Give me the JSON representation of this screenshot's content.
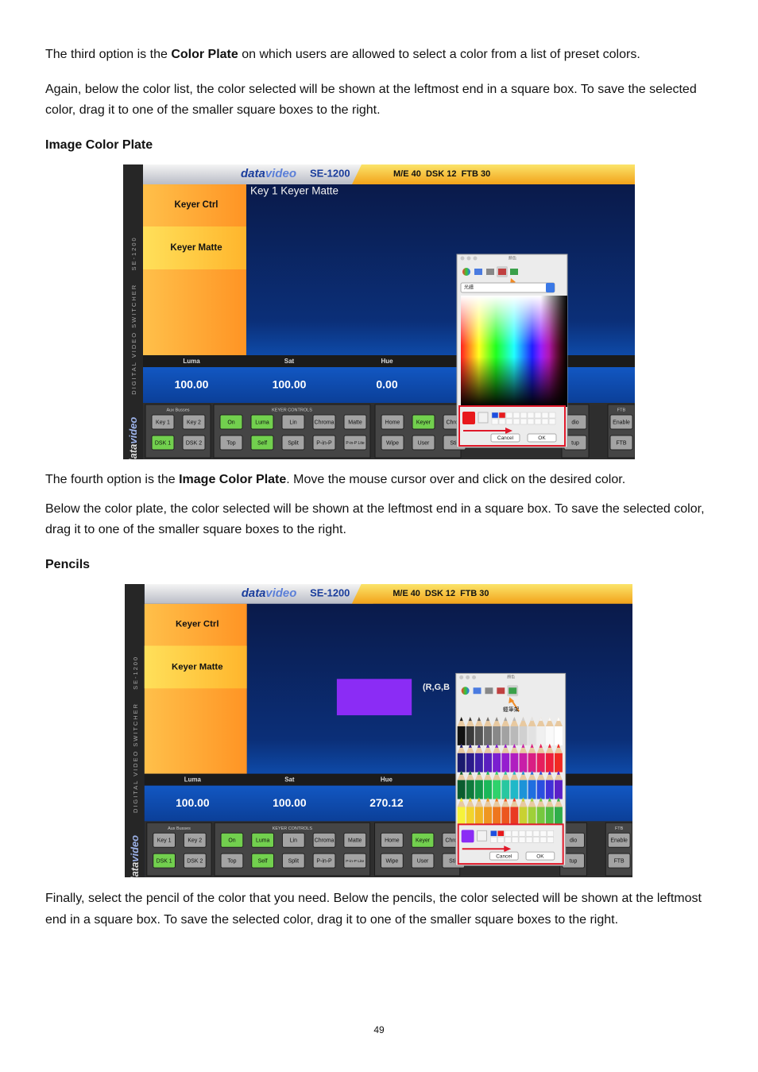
{
  "intro": {
    "p1": [
      "The third option is the ",
      "Color Plate",
      " on which users are allowed to select a color from a list of preset colors."
    ],
    "p2": "Again, below the color list, the color selected will be shown at the leftmost end in a square box. To save the selected color, drag it to one of the smaller square boxes to the right."
  },
  "section1": {
    "heading": "Image Color Plate",
    "screenshot": {
      "brand": [
        "data",
        "video"
      ],
      "model": "SE-1200",
      "status": "M/E 40  DSK 12  FTB 30",
      "side_label": "DIGITAL VIDEO SWITCHER    SE-1200",
      "menu": [
        "Keyer Ctrl",
        "Keyer Matte"
      ],
      "panel_title": "Key 1 Keyer Matte",
      "sliders": [
        {
          "label": "Luma",
          "value": "100.00"
        },
        {
          "label": "Sat",
          "value": "100.00"
        },
        {
          "label": "Hue",
          "value": "0.00"
        }
      ],
      "groups": [
        {
          "label": "Aux Busses",
          "rows": [
            [
              {
                "label": "Key 1"
              },
              {
                "label": "Key 2"
              }
            ],
            [
              {
                "label": "DSK 1",
                "on": true
              },
              {
                "label": "DSK 2"
              }
            ]
          ]
        },
        {
          "label": "KEYER CONTROLS",
          "rows": [
            [
              {
                "label": "On",
                "on": true
              },
              {
                "label": "Luma",
                "on": true
              },
              {
                "label": "Lin"
              },
              {
                "label": "Chroma"
              },
              {
                "label": "Matte"
              }
            ],
            [
              {
                "label": "Top"
              },
              {
                "label": "Self",
                "on": true
              },
              {
                "label": "Split"
              },
              {
                "label": "P-in-P"
              },
              {
                "label": "P-in-P Lite"
              }
            ]
          ]
        },
        {
          "rows": [
            [
              {
                "label": "Home"
              },
              {
                "label": "Keyer",
                "on": true
              },
              {
                "label": "Chrom"
              }
            ],
            [
              {
                "label": "Wipe"
              },
              {
                "label": "User"
              },
              {
                "label": "Still"
              }
            ]
          ]
        },
        {
          "rows": [
            [
              {
                "label": "dio"
              }
            ],
            [
              {
                "label": "tup"
              }
            ]
          ]
        },
        {
          "label": "FTB",
          "rows": [
            [
              {
                "label": "Enable"
              }
            ],
            [
              {
                "label": "FTB"
              }
            ]
          ]
        }
      ],
      "popup": {
        "title": "顏色",
        "dropdown": "光譜",
        "selected_color": "#e8191c",
        "buttons": [
          "Cancel",
          "OK"
        ]
      }
    },
    "p1": [
      "The fourth option is the ",
      "Image Color Plate",
      ". Move the mouse cursor over and click on the desired color."
    ],
    "p2": "Below the color plate, the color selected will be shown at the leftmost end in a square box. To save the selected color, drag it to one of the smaller square boxes to the right."
  },
  "section2": {
    "heading": "Pencils",
    "screenshot": {
      "brand": [
        "data",
        "video"
      ],
      "model": "SE-1200",
      "status": "M/E 40  DSK 12  FTB 30",
      "side_label": "DIGITAL VIDEO SWITCHER    SE-1200",
      "menu": [
        "Keyer Ctrl",
        "Keyer Matte"
      ],
      "sample_color": "#8b2cf5",
      "readout": "(R,G,B",
      "sliders": [
        {
          "label": "Luma",
          "value": "100.00"
        },
        {
          "label": "Sat",
          "value": "100.00"
        },
        {
          "label": "Hue",
          "value": "270.12"
        }
      ],
      "groups": [
        {
          "label": "Aux Busses",
          "rows": [
            [
              {
                "label": "Key 1"
              },
              {
                "label": "Key 2"
              }
            ],
            [
              {
                "label": "DSK 1",
                "on": true
              },
              {
                "label": "DSK 2"
              }
            ]
          ]
        },
        {
          "label": "KEYER CONTROLS",
          "rows": [
            [
              {
                "label": "On",
                "on": true
              },
              {
                "label": "Luma",
                "on": true
              },
              {
                "label": "Lin"
              },
              {
                "label": "Chroma"
              },
              {
                "label": "Matte"
              }
            ],
            [
              {
                "label": "Top"
              },
              {
                "label": "Self",
                "on": true
              },
              {
                "label": "Split"
              },
              {
                "label": "P-in-P"
              },
              {
                "label": "P-in-P Lite"
              }
            ]
          ]
        },
        {
          "rows": [
            [
              {
                "label": "Home"
              },
              {
                "label": "Keyer",
                "on": true
              },
              {
                "label": "Chrom"
              }
            ],
            [
              {
                "label": "Wipe"
              },
              {
                "label": "User"
              },
              {
                "label": "Still"
              }
            ]
          ]
        },
        {
          "rows": [
            [
              {
                "label": "dio"
              }
            ],
            [
              {
                "label": "tup"
              }
            ]
          ]
        },
        {
          "label": "FTB",
          "rows": [
            [
              {
                "label": "Enable"
              }
            ],
            [
              {
                "label": "FTB"
              }
            ]
          ]
        }
      ],
      "popup": {
        "title": "顏色",
        "heading": "蠟筆架",
        "selected_color": "#8b2cf5",
        "buttons": [
          "Cancel",
          "OK"
        ]
      }
    },
    "p1": "Finally, select the pencil of the color that you need. Below the pencils, the color selected will be shown at the leftmost end in a square box. To save the selected color, drag it to one of the smaller square boxes to the right."
  },
  "page_number": "49"
}
